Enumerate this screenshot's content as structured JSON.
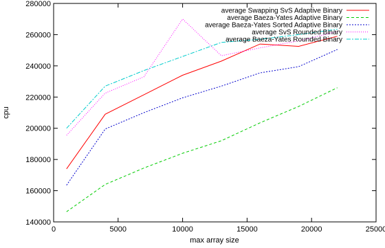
{
  "chart_data": {
    "type": "line",
    "title": "",
    "xlabel": "max array size",
    "ylabel": "cpu",
    "xlim": [
      0,
      25000
    ],
    "ylim": [
      140000,
      280000
    ],
    "xticks": [
      0,
      5000,
      10000,
      15000,
      20000,
      25000
    ],
    "yticks": [
      140000,
      160000,
      180000,
      200000,
      220000,
      240000,
      260000,
      280000
    ],
    "grid": false,
    "legend_position": "top-right",
    "series": [
      {
        "name": "average Swapping SvS Adaptive Binary",
        "color": "#ff0000",
        "dash": "solid",
        "x": [
          1000,
          4000,
          7000,
          10000,
          13000,
          16000,
          19000,
          22000
        ],
        "y": [
          174000,
          209000,
          221500,
          234000,
          243000,
          254000,
          252500,
          259000
        ]
      },
      {
        "name": "average Baeza-Yates Adaptive Binary",
        "color": "#00cc00",
        "dash": "dashed",
        "x": [
          1000,
          4000,
          7000,
          10000,
          13000,
          16000,
          19000,
          22000
        ],
        "y": [
          146500,
          164000,
          174500,
          184000,
          192000,
          203500,
          214000,
          226000
        ]
      },
      {
        "name": "average Baeza-Yates Sorted Adaptive Binary",
        "color": "#0000cc",
        "dash": "dotted",
        "x": [
          1000,
          4000,
          7000,
          10000,
          13000,
          16000,
          19000,
          22000
        ],
        "y": [
          163500,
          199500,
          210000,
          219500,
          227000,
          235500,
          239500,
          250500
        ]
      },
      {
        "name": "average SvS Rounded Binary",
        "color": "#ff00ff",
        "dash": "fine-dotted",
        "x": [
          1000,
          4000,
          7000,
          10000,
          13000,
          16000,
          19000,
          22000
        ],
        "y": [
          195500,
          222500,
          233000,
          270000,
          246500,
          251500,
          256000,
          262000
        ]
      },
      {
        "name": "average Baeza-Yates Rounded Binary",
        "color": "#00cccc",
        "dash": "dash-dot",
        "x": [
          1000,
          4000,
          7000,
          10000,
          13000,
          16000,
          19000,
          22000
        ],
        "y": [
          200000,
          227000,
          237000,
          246000,
          255000,
          257000,
          260000,
          263500
        ]
      }
    ]
  }
}
